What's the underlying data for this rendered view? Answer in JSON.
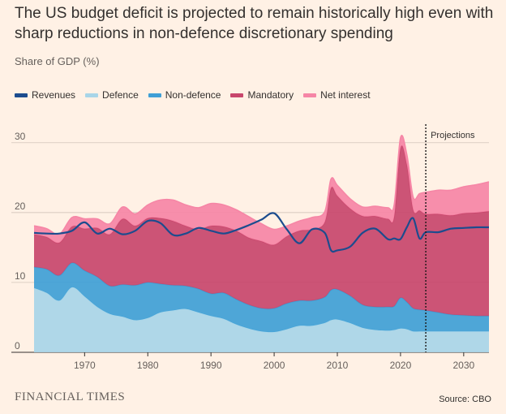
{
  "header": {
    "title": "The US budget deficit is projected to remain historically high even with sharp reductions in non-defence discretionary spending",
    "subtitle": "Share of GDP (%)"
  },
  "footer": {
    "logo": "FINANCIAL TIMES",
    "source": "Source: CBO"
  },
  "colors": {
    "background": "#fff1e5",
    "revenues": "#1c4c8e",
    "defence": "#a8d5e8",
    "non_defence": "#3f9fd6",
    "mandatory": "#c8476c",
    "net_interest": "#f686a6"
  },
  "legend": [
    {
      "label": "Revenues",
      "color": "#1c4c8e"
    },
    {
      "label": "Defence",
      "color": "#a8d5e8"
    },
    {
      "label": "Non-defence",
      "color": "#3f9fd6"
    },
    {
      "label": "Mandatory",
      "color": "#c8476c"
    },
    {
      "label": "Net interest",
      "color": "#f686a6"
    }
  ],
  "chart_data": {
    "type": "area",
    "stacked": true,
    "xlim": [
      1962,
      2034
    ],
    "ylim": [
      0,
      33
    ],
    "yticks": [
      0,
      10,
      20,
      30
    ],
    "xticks": [
      1970,
      1980,
      1990,
      2000,
      2010,
      2020,
      2030
    ],
    "grid": true,
    "legend_position": "top-left",
    "annotation": {
      "label": "Projections",
      "x": 2024
    },
    "x": [
      1962,
      1964,
      1966,
      1968,
      1970,
      1972,
      1974,
      1976,
      1978,
      1980,
      1982,
      1984,
      1986,
      1988,
      1990,
      1992,
      1994,
      1996,
      1998,
      2000,
      2002,
      2004,
      2006,
      2008,
      2009,
      2010,
      2012,
      2014,
      2016,
      2018,
      2019,
      2020,
      2021,
      2022,
      2023,
      2024,
      2026,
      2028,
      2030,
      2032,
      2034
    ],
    "series": [
      {
        "name": "Defence",
        "values": [
          9.2,
          8.5,
          7.4,
          9.3,
          8.0,
          6.5,
          5.5,
          5.1,
          4.6,
          4.9,
          5.7,
          6.0,
          6.2,
          5.7,
          5.2,
          4.8,
          4.0,
          3.4,
          3.0,
          2.9,
          3.3,
          3.8,
          3.8,
          4.2,
          4.6,
          4.7,
          4.2,
          3.5,
          3.2,
          3.1,
          3.2,
          3.4,
          3.3,
          3.0,
          3.0,
          3.0,
          3.0,
          3.0,
          3.0,
          3.0,
          3.0
        ]
      },
      {
        "name": "Non-defence",
        "values": [
          3.0,
          3.4,
          3.6,
          3.5,
          3.7,
          4.3,
          4.0,
          4.6,
          5.0,
          5.1,
          4.1,
          3.6,
          3.3,
          3.4,
          3.2,
          3.7,
          3.6,
          3.4,
          3.3,
          3.4,
          3.7,
          3.6,
          3.6,
          3.7,
          4.3,
          4.3,
          3.9,
          3.3,
          3.3,
          3.4,
          3.4,
          4.4,
          3.9,
          3.3,
          3.1,
          3.0,
          2.7,
          2.4,
          2.3,
          2.2,
          2.2
        ]
      },
      {
        "name": "Mandatory",
        "values": [
          4.7,
          4.6,
          4.7,
          5.2,
          6.0,
          7.0,
          7.4,
          9.4,
          8.5,
          9.2,
          9.4,
          9.2,
          8.6,
          8.5,
          9.7,
          9.5,
          9.8,
          9.6,
          9.6,
          9.1,
          9.6,
          10.0,
          10.2,
          10.7,
          14.6,
          13.4,
          12.5,
          12.7,
          13.0,
          12.6,
          12.8,
          21.4,
          19.7,
          14.1,
          14.2,
          13.8,
          14.1,
          14.2,
          14.6,
          14.8,
          15.0
        ]
      },
      {
        "name": "Net interest",
        "values": [
          1.2,
          1.2,
          1.2,
          1.3,
          1.4,
          1.3,
          1.5,
          1.7,
          1.7,
          1.9,
          2.6,
          3.0,
          3.0,
          3.1,
          3.2,
          3.1,
          3.0,
          3.0,
          2.5,
          2.2,
          1.5,
          1.4,
          1.7,
          1.5,
          1.3,
          1.5,
          1.4,
          1.3,
          1.4,
          1.6,
          1.7,
          1.5,
          1.4,
          1.8,
          2.4,
          3.1,
          3.4,
          3.6,
          3.8,
          4.0,
          4.2
        ]
      },
      {
        "name": "Revenues",
        "type": "line",
        "values": [
          17.1,
          17.0,
          17.0,
          17.4,
          18.6,
          17.0,
          17.7,
          16.9,
          17.4,
          18.8,
          18.5,
          16.8,
          17.0,
          17.8,
          17.4,
          17.0,
          17.5,
          18.2,
          19.0,
          19.9,
          17.6,
          15.6,
          17.6,
          17.1,
          14.6,
          14.6,
          15.1,
          17.1,
          17.7,
          16.2,
          16.3,
          16.2,
          17.9,
          19.2,
          16.3,
          17.2,
          17.2,
          17.7,
          17.8,
          17.9,
          17.9
        ]
      }
    ]
  }
}
